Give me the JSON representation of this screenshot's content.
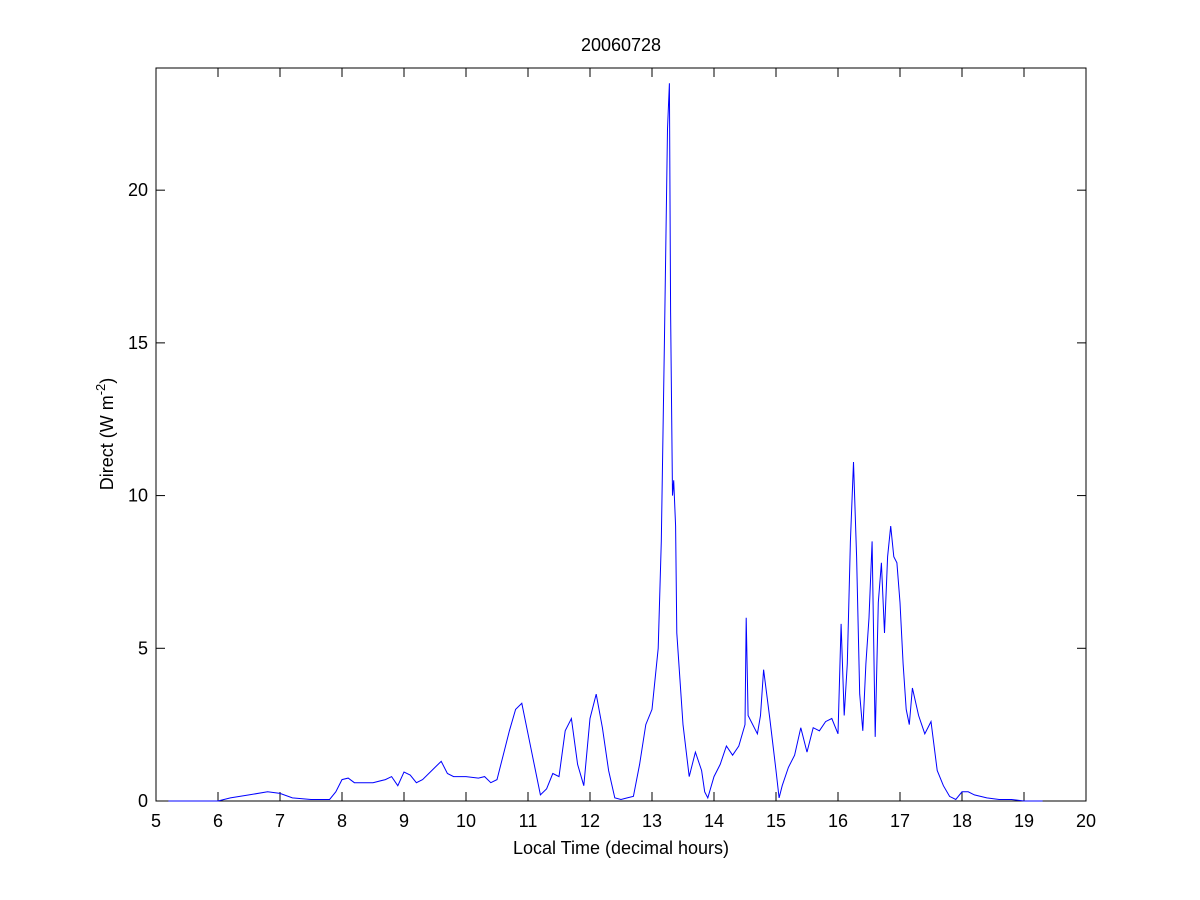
{
  "chart_data": {
    "type": "line",
    "title": "20060728",
    "xlabel": "Local Time (decimal hours)",
    "ylabel": {
      "main": "Direct (W m",
      "superscript": "-2",
      "close": ")"
    },
    "xlim": [
      5,
      20
    ],
    "ylim": [
      0,
      24
    ],
    "xticks": [
      5,
      6,
      7,
      8,
      9,
      10,
      11,
      12,
      13,
      14,
      15,
      16,
      17,
      18,
      19,
      20
    ],
    "yticks": [
      0,
      5,
      10,
      15,
      20
    ],
    "grid": false,
    "line_color": "#0000ff",
    "series": [
      {
        "x": [
          5.2,
          6.0,
          6.2,
          6.5,
          6.8,
          7.0,
          7.2,
          7.5,
          7.8,
          7.9,
          8.0,
          8.1,
          8.2,
          8.3,
          8.5,
          8.7,
          8.8,
          8.9,
          9.0,
          9.1,
          9.2,
          9.3,
          9.5,
          9.6,
          9.7,
          9.8,
          10.0,
          10.2,
          10.3,
          10.4,
          10.5,
          10.6,
          10.7,
          10.8,
          10.9,
          11.0,
          11.1,
          11.2,
          11.3,
          11.4,
          11.5,
          11.6,
          11.7,
          11.8,
          11.9,
          12.0,
          12.1,
          12.2,
          12.3,
          12.4,
          12.5,
          12.6,
          12.7,
          12.8,
          12.9,
          13.0,
          13.1,
          13.15,
          13.2,
          13.25,
          13.28,
          13.3,
          13.33,
          13.35,
          13.38,
          13.4,
          13.45,
          13.5,
          13.6,
          13.7,
          13.8,
          13.85,
          13.9,
          14.0,
          14.1,
          14.2,
          14.3,
          14.4,
          14.5,
          14.52,
          14.55,
          14.6,
          14.7,
          14.75,
          14.8,
          14.9,
          15.0,
          15.05,
          15.1,
          15.2,
          15.3,
          15.4,
          15.5,
          15.6,
          15.7,
          15.8,
          15.9,
          16.0,
          16.05,
          16.1,
          16.15,
          16.2,
          16.25,
          16.3,
          16.35,
          16.4,
          16.45,
          16.5,
          16.55,
          16.6,
          16.65,
          16.7,
          16.75,
          16.8,
          16.85,
          16.9,
          16.95,
          17.0,
          17.05,
          17.1,
          17.15,
          17.2,
          17.3,
          17.4,
          17.5,
          17.6,
          17.7,
          17.8,
          17.9,
          18.0,
          18.1,
          18.2,
          18.4,
          18.6,
          18.8,
          19.0,
          19.3
        ],
        "y": [
          0.0,
          0.0,
          0.1,
          0.2,
          0.3,
          0.25,
          0.1,
          0.05,
          0.05,
          0.3,
          0.7,
          0.75,
          0.6,
          0.6,
          0.6,
          0.7,
          0.8,
          0.5,
          0.95,
          0.85,
          0.6,
          0.7,
          1.1,
          1.3,
          0.9,
          0.8,
          0.8,
          0.75,
          0.8,
          0.6,
          0.7,
          1.5,
          2.3,
          3.0,
          3.2,
          2.2,
          1.2,
          0.2,
          0.4,
          0.9,
          0.8,
          2.3,
          2.7,
          1.2,
          0.5,
          2.7,
          3.5,
          2.4,
          1.0,
          0.1,
          0.05,
          0.1,
          0.15,
          1.2,
          2.5,
          3.0,
          5.0,
          8.5,
          15.0,
          22.0,
          23.5,
          16.0,
          10.0,
          10.5,
          9.0,
          5.5,
          4.0,
          2.5,
          0.8,
          1.6,
          1.0,
          0.3,
          0.1,
          0.8,
          1.2,
          1.8,
          1.5,
          1.8,
          2.5,
          6.0,
          2.8,
          2.6,
          2.2,
          2.8,
          4.3,
          2.7,
          1.0,
          0.1,
          0.5,
          1.1,
          1.5,
          2.4,
          1.6,
          2.4,
          2.3,
          2.6,
          2.7,
          2.2,
          5.8,
          2.8,
          4.5,
          8.5,
          11.1,
          8.0,
          3.5,
          2.3,
          4.5,
          6.0,
          8.5,
          2.1,
          6.5,
          7.8,
          5.5,
          8.0,
          9.0,
          8.0,
          7.8,
          6.5,
          4.5,
          3.0,
          2.5,
          3.7,
          2.8,
          2.2,
          2.6,
          1.0,
          0.5,
          0.15,
          0.05,
          0.3,
          0.3,
          0.2,
          0.1,
          0.05,
          0.05,
          0.0,
          0.0
        ]
      }
    ]
  }
}
